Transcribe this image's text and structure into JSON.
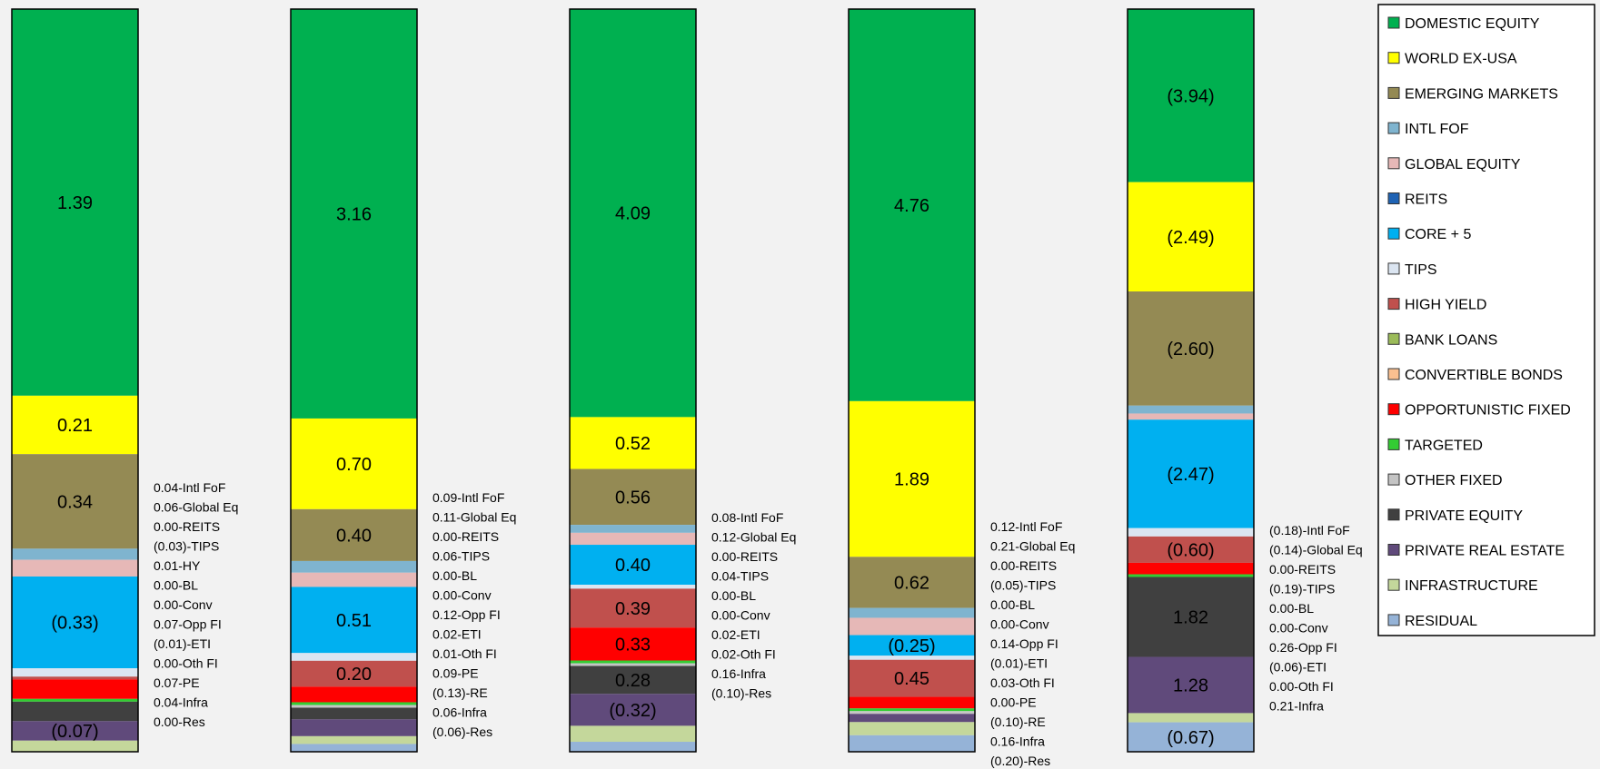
{
  "chart_data": {
    "type": "bar",
    "stacked": true,
    "orientation": "vertical",
    "normalized": true,
    "legend_position": "right",
    "grid": false,
    "series": [
      {
        "name": "DOMESTIC EQUITY",
        "color": "#00b050"
      },
      {
        "name": "WORLD EX-USA",
        "color": "#ffff00"
      },
      {
        "name": "EMERGING MARKETS",
        "color": "#948a54"
      },
      {
        "name": "INTL FOF",
        "color": "#7fb4cf"
      },
      {
        "name": "GLOBAL EQUITY",
        "color": "#e6b8b7"
      },
      {
        "name": "REITS",
        "color": "#1f63b4"
      },
      {
        "name": "CORE + 5",
        "color": "#00b0f0"
      },
      {
        "name": "TIPS",
        "color": "#dbe5f1"
      },
      {
        "name": "HIGH YIELD",
        "color": "#c0504d"
      },
      {
        "name": "BANK LOANS",
        "color": "#9bbb59"
      },
      {
        "name": "CONVERTIBLE BONDS",
        "color": "#fac090"
      },
      {
        "name": "OPPORTUNISTIC FIXED",
        "color": "#ff0000"
      },
      {
        "name": "TARGETED",
        "color": "#33cc33"
      },
      {
        "name": "OTHER FIXED",
        "color": "#c4c4c4"
      },
      {
        "name": "PRIVATE EQUITY",
        "color": "#404040"
      },
      {
        "name": "PRIVATE REAL ESTATE",
        "color": "#604a7b"
      },
      {
        "name": "INFRASTRUCTURE",
        "color": "#c4d79b"
      },
      {
        "name": "RESIDUAL",
        "color": "#95b3d7"
      }
    ],
    "bars": [
      {
        "segments": [
          {
            "series": "DOMESTIC EQUITY",
            "value": 1.39,
            "label": "1.39"
          },
          {
            "series": "WORLD EX-USA",
            "value": 0.21,
            "label": "0.21"
          },
          {
            "series": "EMERGING MARKETS",
            "value": 0.34,
            "label": "0.34"
          },
          {
            "series": "INTL FOF",
            "value": 0.04
          },
          {
            "series": "GLOBAL EQUITY",
            "value": 0.06
          },
          {
            "series": "REITS",
            "value": 0.0
          },
          {
            "series": "CORE + 5",
            "value": -0.33,
            "label": "(0.33)"
          },
          {
            "series": "TIPS",
            "value": -0.03
          },
          {
            "series": "HIGH YIELD",
            "value": 0.01
          },
          {
            "series": "BANK LOANS",
            "value": 0.0
          },
          {
            "series": "CONVERTIBLE BONDS",
            "value": 0.0
          },
          {
            "series": "OPPORTUNISTIC FIXED",
            "value": 0.07
          },
          {
            "series": "TARGETED",
            "value": -0.01
          },
          {
            "series": "OTHER FIXED",
            "value": 0.0
          },
          {
            "series": "PRIVATE EQUITY",
            "value": 0.07
          },
          {
            "series": "PRIVATE REAL ESTATE",
            "value": -0.07,
            "label": "(0.07)"
          },
          {
            "series": "INFRASTRUCTURE",
            "value": 0.04
          },
          {
            "series": "RESIDUAL",
            "value": 0.0
          }
        ],
        "side_labels": [
          "0.04-Intl FoF",
          "0.06-Global Eq",
          "0.00-REITS",
          "(0.03)-TIPS",
          "0.01-HY",
          "0.00-BL",
          "0.00-Conv",
          "0.07-Opp FI",
          "(0.01)-ETI",
          "0.00-Oth FI",
          "0.07-PE",
          "0.04-Infra",
          "0.00-Res"
        ]
      },
      {
        "segments": [
          {
            "series": "DOMESTIC EQUITY",
            "value": 3.16,
            "label": "3.16"
          },
          {
            "series": "WORLD EX-USA",
            "value": 0.7,
            "label": "0.70"
          },
          {
            "series": "EMERGING MARKETS",
            "value": 0.4,
            "label": "0.40"
          },
          {
            "series": "INTL FOF",
            "value": 0.09
          },
          {
            "series": "GLOBAL EQUITY",
            "value": 0.11
          },
          {
            "series": "REITS",
            "value": 0.0
          },
          {
            "series": "CORE + 5",
            "value": 0.51,
            "label": "0.51"
          },
          {
            "series": "TIPS",
            "value": 0.06
          },
          {
            "series": "HIGH YIELD",
            "value": 0.2,
            "label": "0.20"
          },
          {
            "series": "BANK LOANS",
            "value": 0.0
          },
          {
            "series": "CONVERTIBLE BONDS",
            "value": 0.0
          },
          {
            "series": "OPPORTUNISTIC FIXED",
            "value": 0.12
          },
          {
            "series": "TARGETED",
            "value": 0.02
          },
          {
            "series": "OTHER FIXED",
            "value": 0.01
          },
          {
            "series": "PRIVATE EQUITY",
            "value": 0.09
          },
          {
            "series": "PRIVATE REAL ESTATE",
            "value": -0.13
          },
          {
            "series": "INFRASTRUCTURE",
            "value": 0.06
          },
          {
            "series": "RESIDUAL",
            "value": -0.06
          }
        ],
        "side_labels": [
          "0.09-Intl FoF",
          "0.11-Global Eq",
          "0.00-REITS",
          "0.06-TIPS",
          "0.00-BL",
          "0.00-Conv",
          "0.12-Opp FI",
          "0.02-ETI",
          "0.01-Oth FI",
          "0.09-PE",
          "(0.13)-RE",
          "0.06-Infra",
          "(0.06)-Res"
        ]
      },
      {
        "segments": [
          {
            "series": "DOMESTIC EQUITY",
            "value": 4.09,
            "label": "4.09"
          },
          {
            "series": "WORLD EX-USA",
            "value": 0.52,
            "label": "0.52"
          },
          {
            "series": "EMERGING MARKETS",
            "value": 0.56,
            "label": "0.56"
          },
          {
            "series": "INTL FOF",
            "value": 0.08
          },
          {
            "series": "GLOBAL EQUITY",
            "value": 0.12
          },
          {
            "series": "REITS",
            "value": 0.0
          },
          {
            "series": "CORE + 5",
            "value": 0.4,
            "label": "0.40"
          },
          {
            "series": "TIPS",
            "value": 0.04
          },
          {
            "series": "HIGH YIELD",
            "value": 0.39,
            "label": "0.39"
          },
          {
            "series": "BANK LOANS",
            "value": 0.0
          },
          {
            "series": "CONVERTIBLE BONDS",
            "value": 0.0
          },
          {
            "series": "OPPORTUNISTIC FIXED",
            "value": 0.33,
            "label": "0.33"
          },
          {
            "series": "TARGETED",
            "value": 0.02
          },
          {
            "series": "OTHER FIXED",
            "value": 0.02
          },
          {
            "series": "PRIVATE EQUITY",
            "value": 0.28,
            "label": "0.28"
          },
          {
            "series": "PRIVATE REAL ESTATE",
            "value": -0.32,
            "label": "(0.32)"
          },
          {
            "series": "INFRASTRUCTURE",
            "value": 0.16
          },
          {
            "series": "RESIDUAL",
            "value": -0.1
          }
        ],
        "side_labels": [
          "0.08-Intl FoF",
          "0.12-Global Eq",
          "0.00-REITS",
          "0.04-TIPS",
          "0.00-BL",
          "0.00-Conv",
          "0.02-ETI",
          "0.02-Oth FI",
          "0.16-Infra",
          "(0.10)-Res"
        ]
      },
      {
        "segments": [
          {
            "series": "DOMESTIC EQUITY",
            "value": 4.76,
            "label": "4.76"
          },
          {
            "series": "WORLD EX-USA",
            "value": 1.89,
            "label": "1.89"
          },
          {
            "series": "EMERGING MARKETS",
            "value": 0.62,
            "label": "0.62"
          },
          {
            "series": "INTL FOF",
            "value": 0.12
          },
          {
            "series": "GLOBAL EQUITY",
            "value": 0.21
          },
          {
            "series": "REITS",
            "value": 0.0
          },
          {
            "series": "CORE + 5",
            "value": -0.25,
            "label": "(0.25)"
          },
          {
            "series": "TIPS",
            "value": -0.05
          },
          {
            "series": "HIGH YIELD",
            "value": 0.45,
            "label": "0.45"
          },
          {
            "series": "BANK LOANS",
            "value": 0.0
          },
          {
            "series": "CONVERTIBLE BONDS",
            "value": 0.0
          },
          {
            "series": "OPPORTUNISTIC FIXED",
            "value": 0.14
          },
          {
            "series": "TARGETED",
            "value": -0.01
          },
          {
            "series": "OTHER FIXED",
            "value": 0.03
          },
          {
            "series": "PRIVATE EQUITY",
            "value": 0.0
          },
          {
            "series": "PRIVATE REAL ESTATE",
            "value": -0.1
          },
          {
            "series": "INFRASTRUCTURE",
            "value": 0.16
          },
          {
            "series": "RESIDUAL",
            "value": -0.2
          }
        ],
        "side_labels": [
          "0.12-Intl FoF",
          "0.21-Global Eq",
          "0.00-REITS",
          "(0.05)-TIPS",
          "0.00-BL",
          "0.00-Conv",
          "0.14-Opp FI",
          "(0.01)-ETI",
          "0.03-Oth FI",
          "0.00-PE",
          "(0.10)-RE",
          "0.16-Infra",
          "(0.20)-Res"
        ]
      },
      {
        "segments": [
          {
            "series": "DOMESTIC EQUITY",
            "value": -3.94,
            "label": "(3.94)"
          },
          {
            "series": "WORLD EX-USA",
            "value": -2.49,
            "label": "(2.49)"
          },
          {
            "series": "EMERGING MARKETS",
            "value": -2.6,
            "label": "(2.60)"
          },
          {
            "series": "INTL FOF",
            "value": -0.18
          },
          {
            "series": "GLOBAL EQUITY",
            "value": -0.14
          },
          {
            "series": "REITS",
            "value": 0.0
          },
          {
            "series": "CORE + 5",
            "value": -2.47,
            "label": "(2.47)"
          },
          {
            "series": "TIPS",
            "value": -0.19
          },
          {
            "series": "HIGH YIELD",
            "value": -0.6,
            "label": "(0.60)"
          },
          {
            "series": "BANK LOANS",
            "value": 0.0
          },
          {
            "series": "CONVERTIBLE BONDS",
            "value": 0.0
          },
          {
            "series": "OPPORTUNISTIC FIXED",
            "value": 0.26
          },
          {
            "series": "TARGETED",
            "value": -0.06
          },
          {
            "series": "OTHER FIXED",
            "value": 0.0
          },
          {
            "series": "PRIVATE EQUITY",
            "value": 1.82,
            "label": "1.82"
          },
          {
            "series": "PRIVATE REAL ESTATE",
            "value": 1.28,
            "label": "1.28"
          },
          {
            "series": "INFRASTRUCTURE",
            "value": 0.21
          },
          {
            "series": "RESIDUAL",
            "value": -0.67,
            "label": "(0.67)"
          }
        ],
        "side_labels": [
          "(0.18)-Intl FoF",
          "(0.14)-Global Eq",
          "0.00-REITS",
          "(0.19)-TIPS",
          "0.00-BL",
          "0.00-Conv",
          "0.26-Opp FI",
          "(0.06)-ETI",
          "0.00-Oth FI",
          "0.21-Infra"
        ]
      }
    ]
  }
}
